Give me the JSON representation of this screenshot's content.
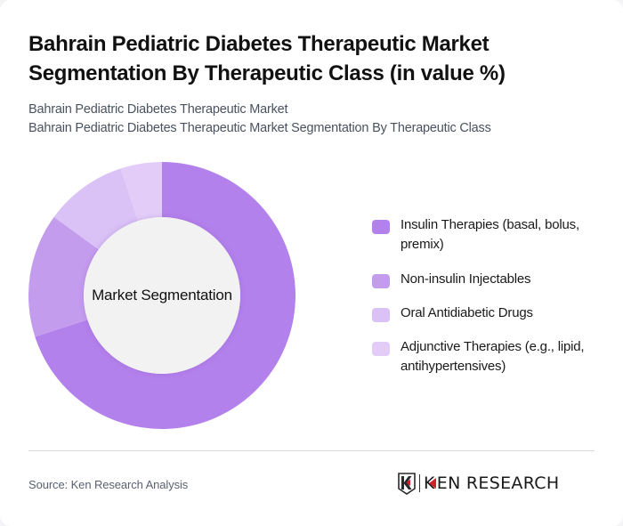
{
  "header": {
    "title_line1": "Bahrain Pediatric Diabetes Therapeutic Market",
    "title_line2": "Segmentation By Therapeutic Class (in value %)",
    "subtitle_line1": "Bahrain Pediatric Diabetes Therapeutic Market",
    "subtitle_line2": "Bahrain Pediatric Diabetes Therapeutic Market Segmentation By Therapeutic Class"
  },
  "chart": {
    "center_label": "Market Segmentation"
  },
  "legend": {
    "items": [
      {
        "label": "Insulin Therapies (basal, bolus, premix)",
        "color": "#b381eb"
      },
      {
        "label": "Non-insulin Injectables",
        "color": "#c49cee"
      },
      {
        "label": "Oral Antidiabetic Drugs",
        "color": "#dac1f6"
      },
      {
        "label": "Adjunctive Therapies (e.g., lipid, antihypertensives)",
        "color": "#e3cdf8"
      }
    ]
  },
  "footer": {
    "source": "Source: Ken Research Analysis",
    "logo_text": "KEN RESEARCH"
  },
  "colors": {
    "accent_red": "#d0202a",
    "center_fill": "#f2f2f2"
  },
  "chart_data": {
    "type": "pie",
    "subtype": "donut",
    "title": "Bahrain Pediatric Diabetes Therapeutic Market Segmentation By Therapeutic Class (in value %)",
    "center_label": "Market Segmentation",
    "categories": [
      "Insulin Therapies (basal, bolus, premix)",
      "Non-insulin Injectables",
      "Oral Antidiabetic Drugs",
      "Adjunctive Therapies (e.g., lipid, antihypertensives)"
    ],
    "values": [
      70,
      15,
      10,
      5
    ],
    "unit": "%",
    "colors": [
      "#b381eb",
      "#c49cee",
      "#dac1f6",
      "#e3cdf8"
    ],
    "start_angle": "12 o'clock, clockwise",
    "legend_position": "right",
    "data_labels": false
  }
}
